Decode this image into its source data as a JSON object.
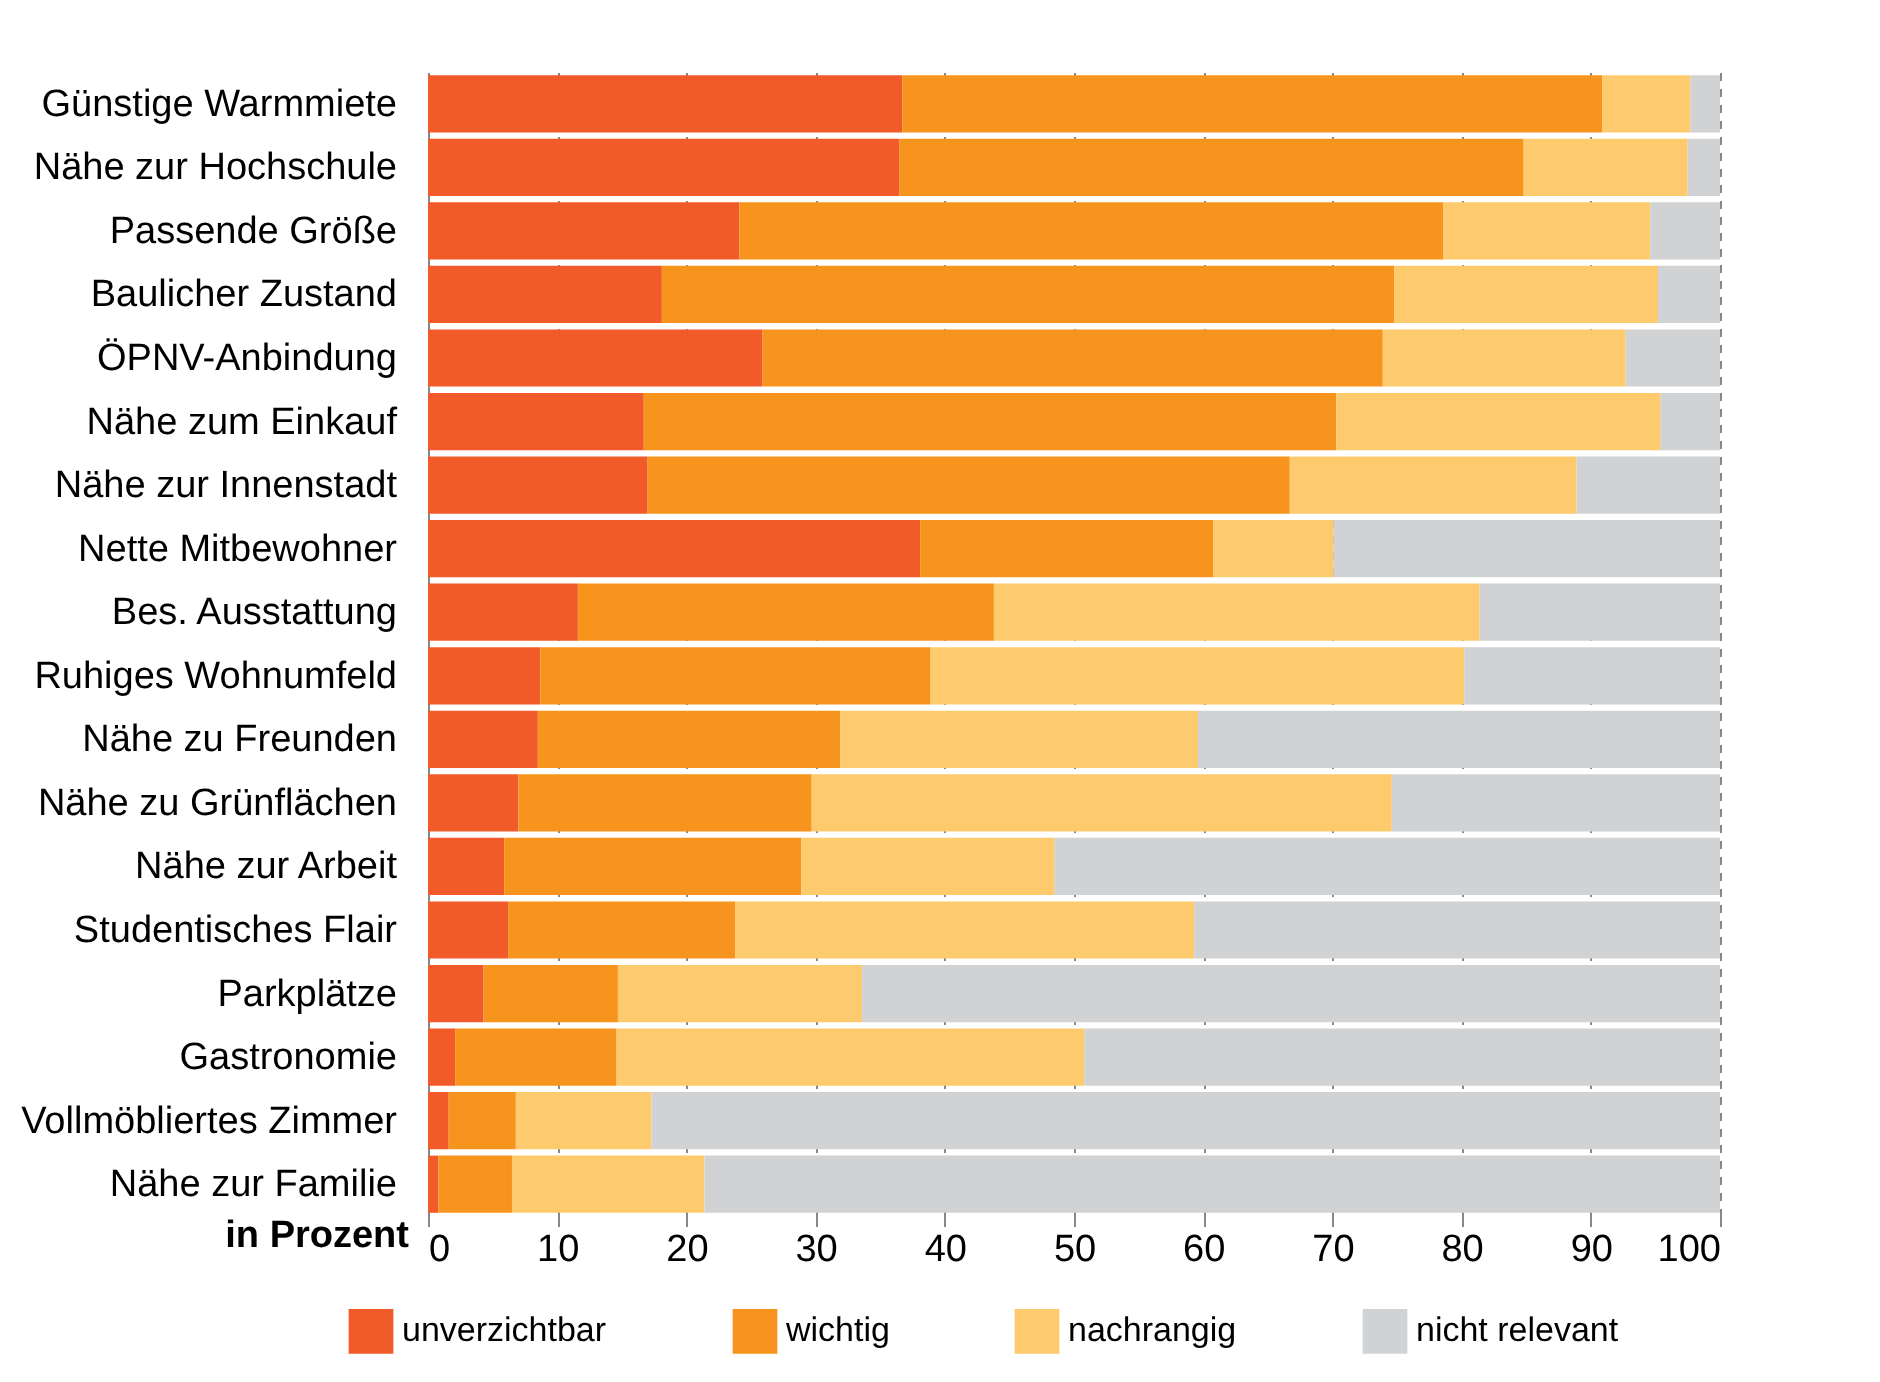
{
  "chart_data": {
    "type": "bar",
    "orientation": "horizontal",
    "stacked": true,
    "xlabel": "in Prozent",
    "categories": [
      "Günstige Warmmiete",
      "Nähe zur Hochschule",
      "Passende Größe",
      "Baulicher Zustand",
      "ÖPNV-Anbindung",
      "Nähe zum Einkauf",
      "Nähe zur Innenstadt",
      "Nette Mitbewohner",
      "Bes. Ausstattung",
      "Ruhiges Wohnumfeld",
      "Nähe zu Freunden",
      "Nähe zu Grünflächen",
      "Nähe zur Arbeit",
      "Studentisches Flair",
      "Parkplätze",
      "Gastronomie",
      "Vollmöbliertes Zimmer",
      "Nähe zur Familie"
    ],
    "series": [
      {
        "name": "unverzichtbar",
        "color": "#f15a29",
        "values": [
          36.7,
          36.5,
          24.1,
          18.1,
          25.9,
          16.7,
          17.0,
          38.1,
          11.6,
          8.7,
          8.5,
          7.0,
          5.9,
          6.2,
          4.3,
          2.1,
          1.6,
          0.8
        ]
      },
      {
        "name": "wichtig",
        "color": "#f7941d",
        "values": [
          54.2,
          48.3,
          54.5,
          56.7,
          48.0,
          53.6,
          49.7,
          22.7,
          32.2,
          30.2,
          23.4,
          22.7,
          23.0,
          17.6,
          10.4,
          12.5,
          5.2,
          5.7
        ]
      },
      {
        "name": "nachrangig",
        "color": "#fdcb6e",
        "values": [
          6.8,
          12.7,
          16.0,
          20.4,
          18.8,
          25.1,
          22.2,
          9.3,
          37.6,
          41.3,
          27.7,
          44.9,
          19.6,
          35.5,
          18.9,
          36.2,
          10.5,
          14.9
        ]
      },
      {
        "name": "nicht relevant",
        "color": "#d1d2d4",
        "values": [
          2.3,
          2.5,
          5.4,
          4.8,
          7.3,
          4.6,
          11.1,
          29.9,
          18.6,
          19.8,
          40.4,
          25.4,
          51.5,
          40.7,
          66.4,
          49.2,
          82.7,
          78.6
        ]
      }
    ],
    "xlim": [
      0,
      100
    ],
    "xticks": [
      0,
      10,
      20,
      30,
      40,
      50,
      60,
      70,
      80,
      90,
      100
    ],
    "grid": "x",
    "legend": "bottom"
  }
}
